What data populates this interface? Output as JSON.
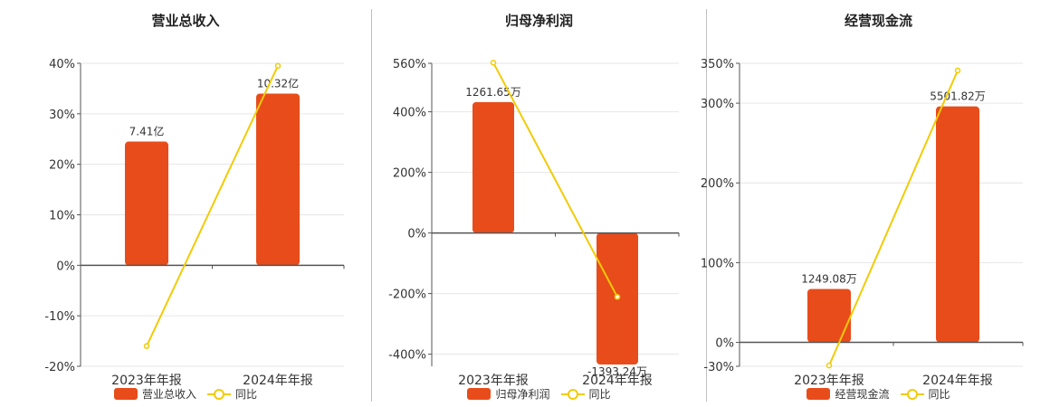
{
  "colors": {
    "bar": "#E84C1A",
    "line": "#F2CB05",
    "axis": "#555555",
    "grid": "#e6e6e6"
  },
  "chart_data": [
    {
      "type": "bar",
      "title": "营业总收入",
      "categories": [
        "2023年年报",
        "2024年年报"
      ],
      "bar_labels": [
        "7.41亿",
        "10.32亿"
      ],
      "bar_values_pct": [
        24.5,
        34.0
      ],
      "line_values_pct": [
        -16.0,
        39.5
      ],
      "ylim": [
        -20,
        40
      ],
      "yticks": [
        40,
        30,
        20,
        10,
        0,
        -10,
        -20
      ],
      "ytick_labels": [
        "40%",
        "30%",
        "20%",
        "10%",
        "0%",
        "-10%",
        "-20%"
      ],
      "legend": {
        "bar": "营业总收入",
        "line": "同比"
      }
    },
    {
      "type": "bar",
      "title": "归母净利润",
      "categories": [
        "2023年年报",
        "2024年年报"
      ],
      "bar_labels": [
        "1261.65万",
        "-1393.24万"
      ],
      "bar_values_pct": [
        432,
        -434
      ],
      "line_values_pct": [
        562,
        -211
      ],
      "ylim": [
        -440,
        560
      ],
      "yticks": [
        560,
        400,
        200,
        0,
        -200,
        -400
      ],
      "ytick_labels": [
        "560%",
        "400%",
        "200%",
        "0%",
        "-200%",
        "-400%"
      ],
      "legend": {
        "bar": "归母净利润",
        "line": "同比"
      }
    },
    {
      "type": "bar",
      "title": "经营现金流",
      "categories": [
        "2023年年报",
        "2024年年报"
      ],
      "bar_labels": [
        "1249.08万",
        "5501.82万"
      ],
      "bar_values_pct": [
        67,
        296
      ],
      "line_values_pct": [
        -29,
        341
      ],
      "ylim": [
        -30,
        350
      ],
      "yticks": [
        350,
        300,
        200,
        100,
        0,
        -30
      ],
      "ytick_labels": [
        "350%",
        "300%",
        "200%",
        "100%",
        "0%",
        "-30%"
      ],
      "legend": {
        "bar": "经营现金流",
        "line": "同比"
      }
    }
  ]
}
